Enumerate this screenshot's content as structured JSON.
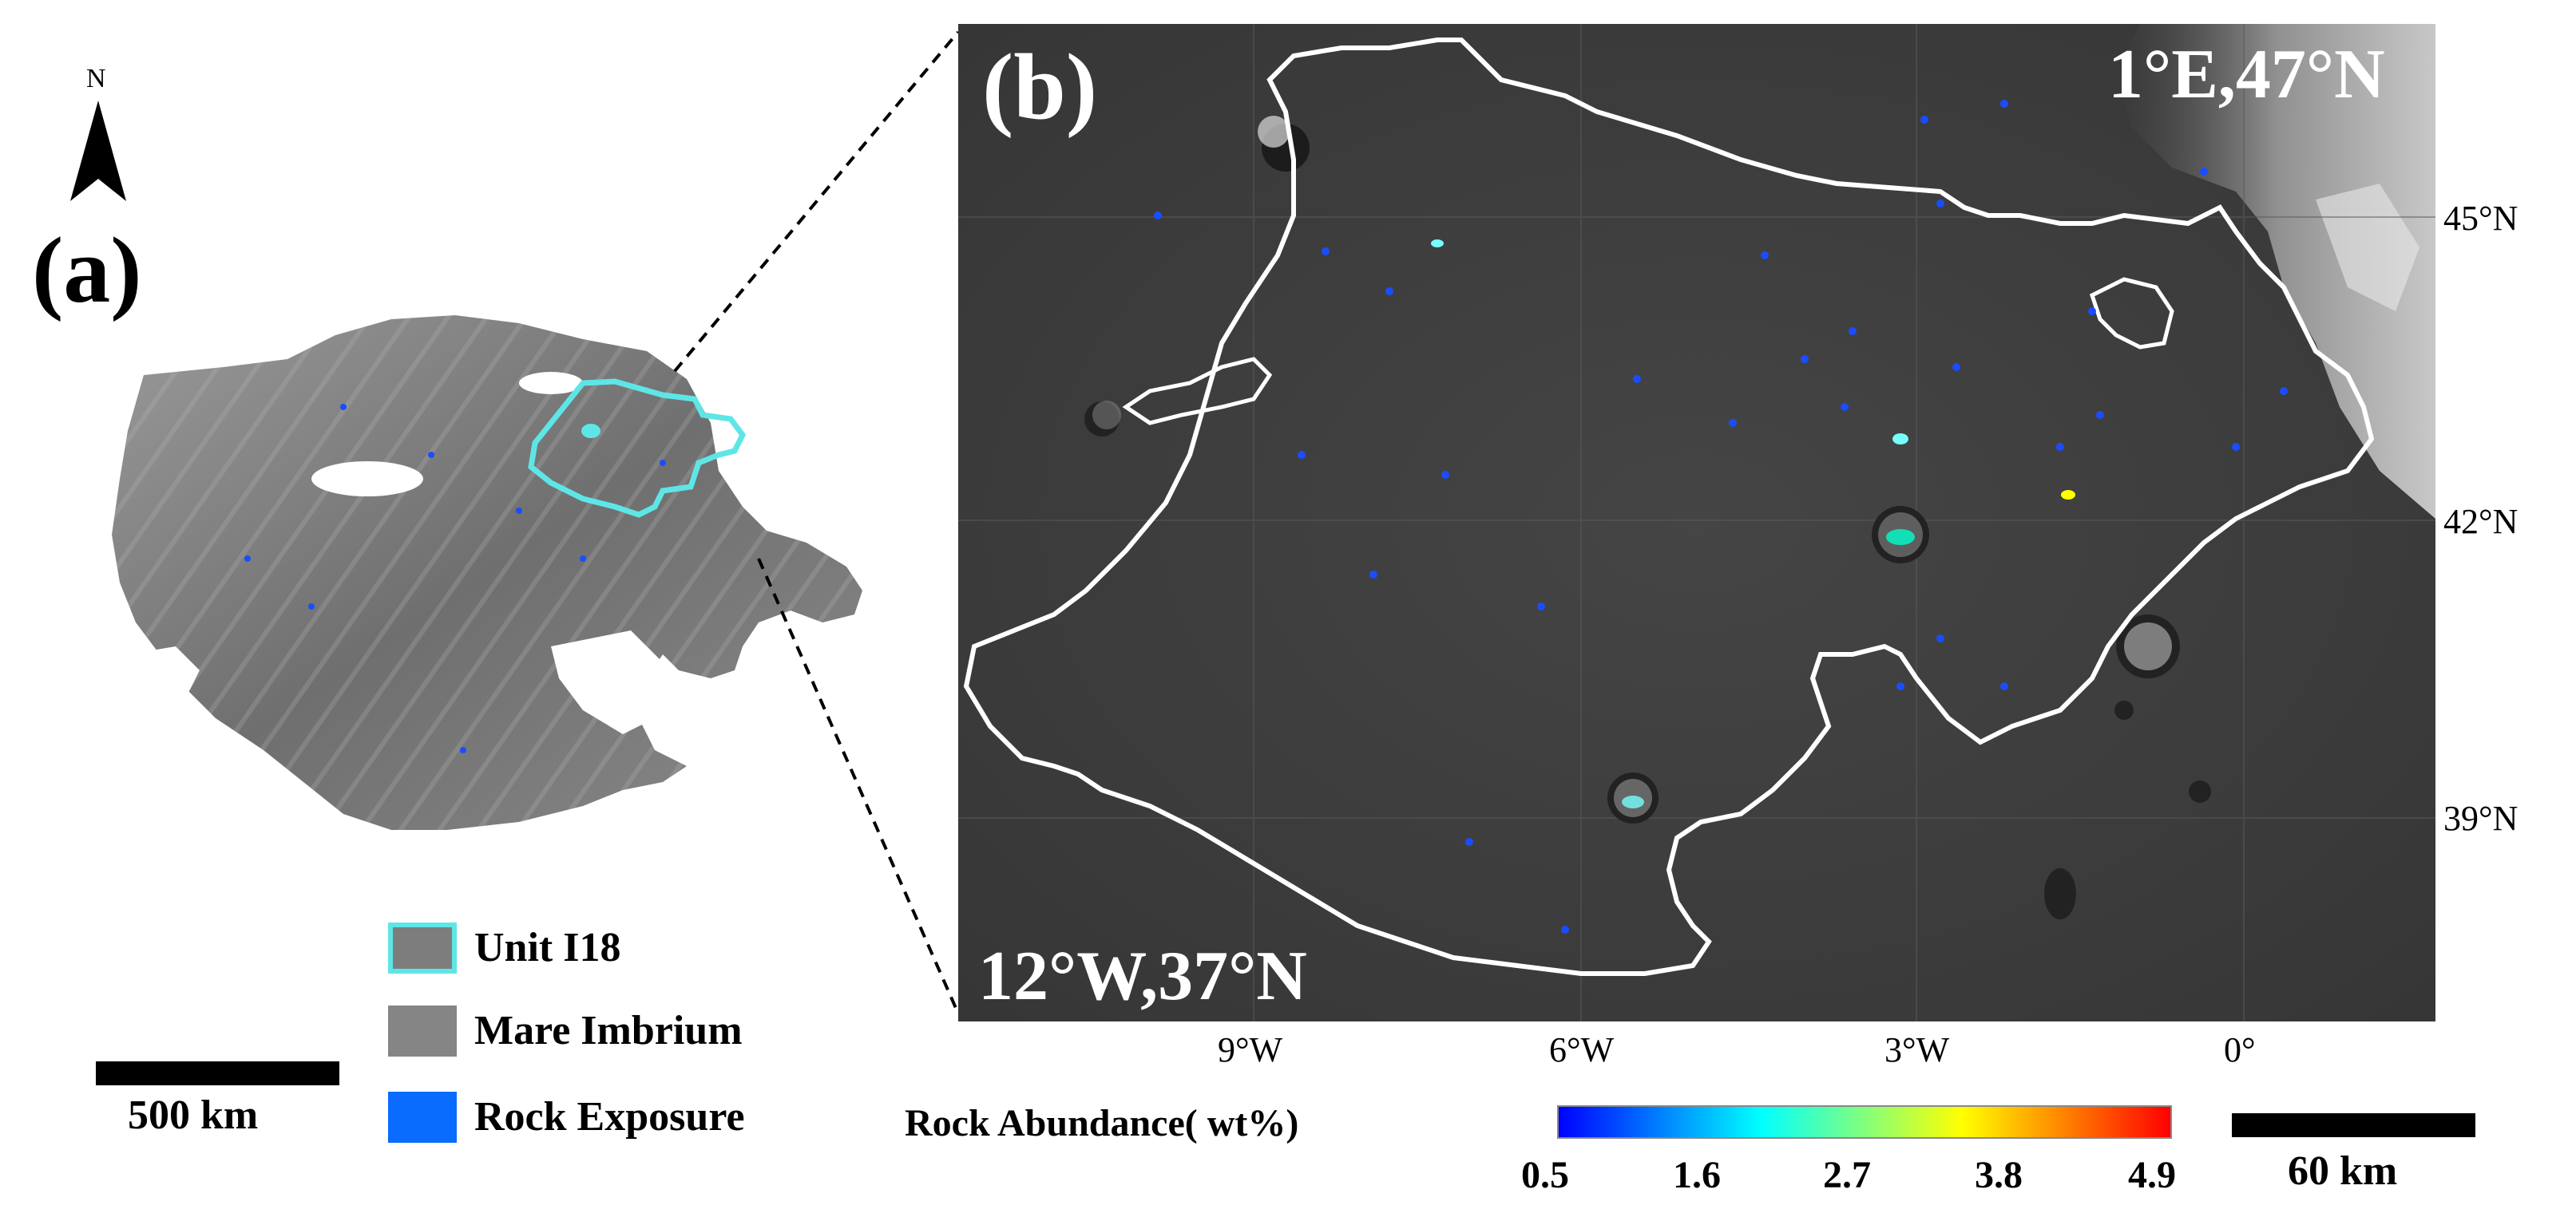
{
  "panel_a": {
    "label": "(a)",
    "north": "N",
    "legend": [
      {
        "label": "Unit I18",
        "fill": "#7d7d7d",
        "border": "#5ee6e6"
      },
      {
        "label": "Mare Imbrium",
        "fill": "#858585",
        "border": "#858585"
      },
      {
        "label": "Rock Exposure",
        "fill": "#0a6bff",
        "border": "#0a6bff"
      }
    ],
    "scale_bar": "500 km"
  },
  "panel_b": {
    "label": "(b)",
    "corner_ne": "1°E,47°N",
    "corner_sw": "12°W,37°N",
    "lon_ticks": [
      "9°W",
      "6°W",
      "3°W",
      "0°"
    ],
    "lat_ticks": [
      "45°N",
      "42°N",
      "39°N"
    ],
    "scale_bar": "60 km",
    "colorbar": {
      "title": "Rock Abundance( wt%)",
      "ticks": [
        "0.5",
        "1.6",
        "2.7",
        "3.8",
        "4.9"
      ],
      "colors": [
        "#0000ff",
        "#00ffff",
        "#ffff00",
        "#ff0000"
      ]
    }
  },
  "colors": {
    "unit_outline": "#5ee6e6",
    "boundary": "#ffffff",
    "rock": "#1a4dff"
  }
}
